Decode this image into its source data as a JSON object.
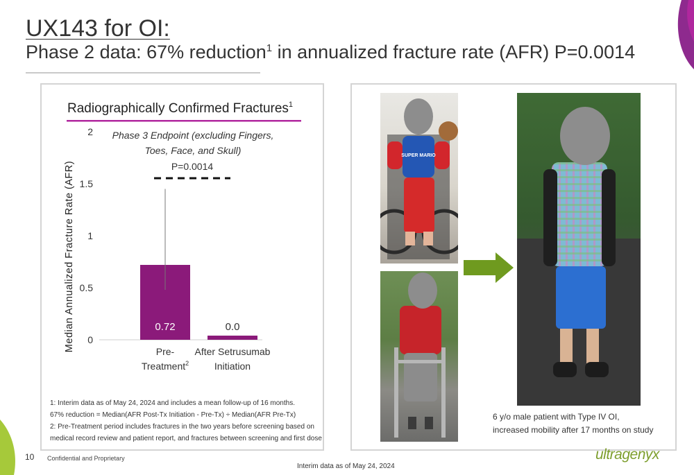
{
  "slide": {
    "title": "UX143 for OI:",
    "subtitle_main": "Phase 2 data: 67% reduction",
    "subtitle_sup": "1",
    "subtitle_rest": " in annualized fracture rate (AFR) P=0.0014",
    "page_number": "10",
    "confidential": "Confidential and Proprietary",
    "interim_note": "Interim data as of May 24, 2024",
    "logo_text": "ultragenyx",
    "colors": {
      "bar": "#8b1a7a",
      "chart_title_rule": "#b0279e",
      "arrow": "#6f9a1f",
      "logo": "#7d9e2d",
      "accent_corner": "#8e2a8e"
    }
  },
  "chart_data": {
    "type": "bar",
    "title": "Radiographically Confirmed Fractures",
    "title_sup": "1",
    "ylabel": "Median Annualized Fracture Rate (AFR)",
    "ylim": [
      0,
      2
    ],
    "yticks": [
      "0",
      "0.5",
      "1",
      "1.5",
      "2"
    ],
    "ytick_values": [
      0,
      0.5,
      1,
      1.5,
      2
    ],
    "categories": [
      "Pre-Treatment",
      "After Setrusumab Initiation"
    ],
    "category_lines": [
      [
        "Pre-",
        "Treatment"
      ],
      [
        "After Setrusumab",
        "Initiation"
      ]
    ],
    "category_sups": [
      "2",
      ""
    ],
    "values": [
      0.72,
      0.04
    ],
    "value_labels": [
      "0.72",
      "0.0"
    ],
    "error_bar": {
      "category": 0,
      "low": 0.48,
      "high": 1.45
    },
    "annotation_lines": [
      "Phase 3 Endpoint (excluding Fingers,",
      "Toes, Face, and Skull)"
    ],
    "pvalue": "P=0.0014",
    "grid": false
  },
  "footnotes": [
    "1: Interim data as of May 24, 2024 and includes a mean follow-up of 16 months.",
    "67% reduction = Median(AFR Post-Tx Initiation - Pre-Tx) ÷ Median(AFR Pre-Tx)",
    "2: Pre-Treatment period includes fractures in the two years before screening based on",
    "medical record review and patient report, and fractures between screening and first dose"
  ],
  "photos": {
    "caption_line1": "6 y/o male patient with Type IV OI,",
    "caption_line2": "increased mobility after 17 months on study",
    "shirt_text": "SUPER MARIO"
  }
}
